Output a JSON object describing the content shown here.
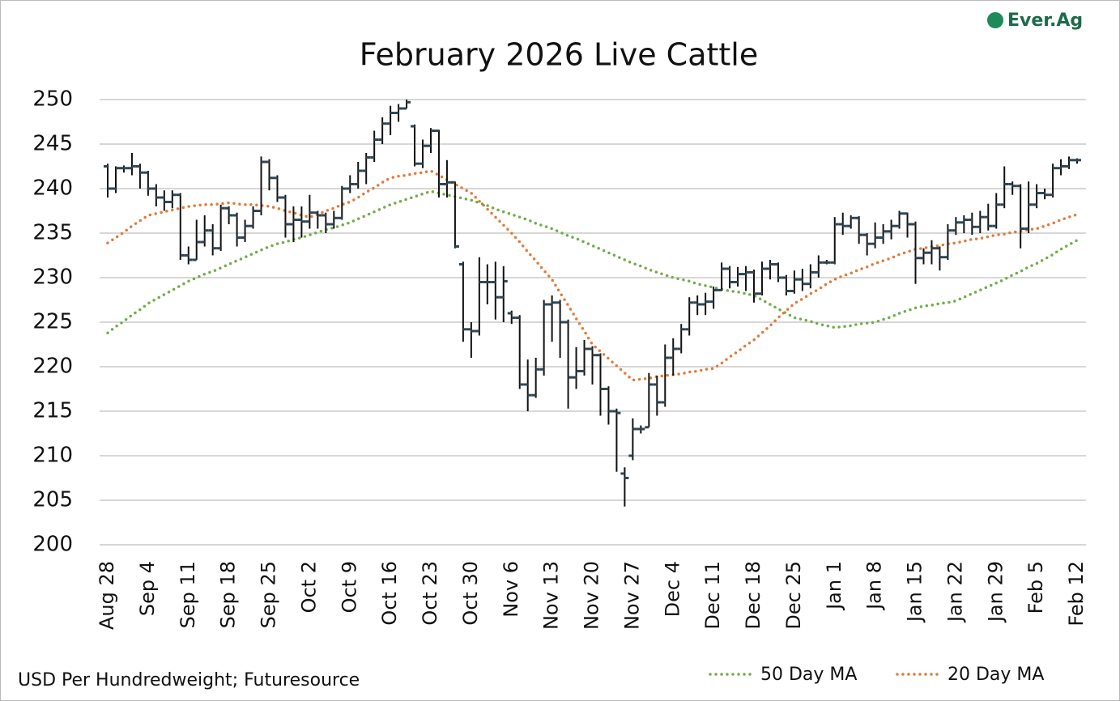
{
  "chart_data": {
    "type": "ohlc",
    "title": "February 2026 Live Cattle",
    "note": "USD Per Hundredweight; Futuresource",
    "logo": "Ever.Ag",
    "categories": [
      "Aug 28",
      null,
      null,
      null,
      null,
      "Sep 4",
      null,
      null,
      null,
      null,
      "Sep 11",
      null,
      null,
      null,
      null,
      "Sep 18",
      null,
      null,
      null,
      null,
      "Sep 25",
      null,
      null,
      null,
      null,
      "Oct 2",
      null,
      null,
      null,
      null,
      "Oct 9",
      null,
      null,
      null,
      null,
      "Oct 16",
      null,
      null,
      null,
      null,
      "Oct 23",
      null,
      null,
      null,
      null,
      "Oct 30",
      null,
      null,
      null,
      null,
      "Nov 6",
      null,
      null,
      null,
      null,
      "Nov 13",
      null,
      null,
      null,
      null,
      "Nov 20",
      null,
      null,
      null,
      null,
      "Nov 27",
      null,
      null,
      null,
      null,
      "Dec 4",
      null,
      null,
      null,
      null,
      "Dec 11",
      null,
      null,
      null,
      null,
      "Dec 18",
      null,
      null,
      null,
      null,
      "Dec 25",
      null,
      null,
      null,
      null,
      "Jan 1",
      null,
      null,
      null,
      null,
      "Jan 8",
      null,
      null,
      null,
      null,
      "Jan 15",
      null,
      null,
      null,
      null,
      "Jan 22",
      null,
      null,
      null,
      null,
      "Jan 29",
      null,
      null,
      null,
      null,
      "Feb 5",
      null,
      null,
      null,
      null,
      "Feb 12"
    ],
    "ohlc": {
      "bar_color": "#111111",
      "tick_color": "#2f4652",
      "open": [
        242.5,
        240,
        242.3,
        242.3,
        242.5,
        241.8,
        240,
        239,
        238.5,
        239.3,
        232.5,
        232,
        234,
        235.3,
        233.3,
        237.8,
        237,
        234.5,
        235.8,
        237.5,
        243,
        241.2,
        239,
        236,
        236.5,
        236.3,
        237.3,
        237,
        236,
        236.7,
        240,
        240.5,
        242,
        243.5,
        245.5,
        247.3,
        248.5,
        249,
        247,
        242.8,
        244.8,
        246.5,
        240.5,
        240.7,
        231.5,
        224.2,
        224,
        229.5,
        229.5,
        227.8,
        226,
        225.5,
        218,
        216.8,
        219.7,
        227,
        227.2,
        225,
        218.8,
        219.5,
        222,
        221.3,
        217.5,
        215,
        208,
        210,
        213,
        213.2,
        218,
        216,
        221,
        222,
        224.2,
        227.2,
        227,
        227.3,
        228.6,
        231,
        229.5,
        230.4,
        230.6,
        228.2,
        231,
        231.5,
        230,
        228.5,
        229.8,
        229.3,
        230.6,
        231.7,
        231.7,
        236,
        235.8,
        236.7,
        234.8,
        233.8,
        234.5,
        235.2,
        235.8,
        237.2,
        236,
        232.2,
        232.8,
        233.3,
        232.3,
        235.3,
        236.2,
        236.5,
        235.7,
        236.8,
        235.8,
        238.2,
        240.5,
        240.3,
        235.5,
        238.2,
        239.5,
        239.3,
        242.3,
        242.5,
        243.2
      ],
      "high": [
        242.8,
        242.5,
        242.6,
        244,
        242.8,
        242,
        240.5,
        239.8,
        239.8,
        239.5,
        233.5,
        236.5,
        237,
        236,
        238.2,
        238,
        237.3,
        236.5,
        238,
        243.6,
        243.3,
        241.5,
        239.3,
        238,
        238,
        239.3,
        237.5,
        237.3,
        237.5,
        240.3,
        241.5,
        243,
        244,
        246.5,
        248,
        249.3,
        249.5,
        250,
        247.2,
        245.5,
        246.8,
        246.6,
        243.2,
        240.8,
        231.8,
        225,
        232.3,
        231.5,
        231.8,
        231.3,
        226.3,
        225.8,
        220.8,
        221,
        227.5,
        228,
        227.5,
        225.3,
        222.2,
        223,
        222.3,
        221.5,
        217.8,
        215.3,
        208.7,
        214.2,
        213.4,
        219.3,
        219,
        222.5,
        223.2,
        224.8,
        227.8,
        228,
        228.3,
        229,
        231.7,
        231.3,
        231.2,
        231.3,
        230.9,
        231.8,
        232,
        231.7,
        230.3,
        230.8,
        231,
        231.5,
        232.5,
        232,
        236.8,
        237.3,
        237,
        236.9,
        235,
        236.2,
        236,
        236.5,
        237.5,
        237.3,
        236.3,
        233.3,
        234.2,
        233.5,
        236,
        236.8,
        237,
        237.3,
        237.5,
        238.3,
        239.5,
        242.5,
        240.8,
        240.5,
        240.8,
        240.5,
        240,
        242.8,
        243.3,
        243.6,
        243.4
      ],
      "low": [
        239,
        239.5,
        241.8,
        241.5,
        240,
        239.2,
        238,
        237.5,
        237.8,
        232,
        231.5,
        232,
        233.5,
        232.5,
        233,
        236,
        233.5,
        234,
        235.5,
        237,
        239.8,
        238.5,
        234.5,
        234,
        234.5,
        235.5,
        235.5,
        235,
        235.5,
        236.5,
        239.5,
        240,
        240.5,
        243,
        245,
        246,
        247.5,
        249,
        242.5,
        242.3,
        244,
        239,
        239,
        233.3,
        222.8,
        221,
        223.5,
        227,
        225.3,
        225,
        224.8,
        217.5,
        215,
        216.5,
        219,
        222.8,
        221,
        215.3,
        217.5,
        219,
        218,
        214.5,
        213.5,
        208.2,
        204.3,
        209.5,
        212.5,
        213.2,
        214.5,
        215.5,
        219,
        221.5,
        223.5,
        225.8,
        225.8,
        226.5,
        228.5,
        228.8,
        229,
        228.5,
        227.2,
        228,
        229.8,
        229.5,
        228,
        228.2,
        228.5,
        228.8,
        230,
        231.5,
        231.5,
        234.8,
        235.5,
        233.8,
        232.5,
        233.3,
        233.8,
        234.3,
        235.5,
        234.5,
        229.3,
        231.5,
        231.5,
        230.8,
        232,
        234.8,
        235,
        234.8,
        235,
        235.3,
        235.5,
        237.8,
        239.3,
        233.3,
        235,
        237.8,
        238.8,
        239,
        241.5,
        242.2,
        242.8
      ],
      "close": [
        240,
        242.3,
        242.3,
        242.5,
        241.8,
        240,
        239,
        238.5,
        239.3,
        232.5,
        232,
        234,
        235.3,
        233.3,
        237.8,
        237,
        234.5,
        235.8,
        237.5,
        243,
        241.2,
        239,
        236,
        236.5,
        236.3,
        237.3,
        237,
        236,
        236.7,
        240,
        240.5,
        242,
        243.5,
        245.5,
        247.3,
        248.5,
        249,
        249.7,
        242.8,
        244.8,
        246.5,
        240.5,
        240.7,
        233.5,
        224.2,
        224,
        229.5,
        229.5,
        227.8,
        229.6,
        225.5,
        218,
        216.8,
        219.7,
        227,
        227.2,
        225,
        218.8,
        219.5,
        222,
        221.3,
        217.5,
        215,
        214.8,
        207.5,
        213,
        213,
        218,
        216,
        221,
        222,
        224.2,
        227.2,
        227,
        227.3,
        228.6,
        231,
        229.5,
        230.4,
        230.6,
        228.2,
        231,
        231.5,
        230,
        228.5,
        229.8,
        229.3,
        230.6,
        231.7,
        231.7,
        236,
        235.8,
        236.7,
        234.8,
        233.8,
        234.5,
        235.2,
        235.8,
        237.2,
        236,
        232.2,
        232.8,
        233.3,
        232.3,
        235.3,
        236.2,
        236.5,
        235.7,
        236.8,
        235.8,
        238.2,
        240.5,
        240.3,
        235.5,
        238.2,
        239.5,
        239.3,
        242.3,
        242.5,
        243.2,
        243.2
      ]
    },
    "series": [
      {
        "name": "50 Day MA",
        "color": "#70ad47",
        "values": [
          223.8,
          224.5,
          225.1,
          225.8,
          226.4,
          227.1,
          227.6,
          228.1,
          228.6,
          229.1,
          229.6,
          230.0,
          230.4,
          230.7,
          231.1,
          231.5,
          231.9,
          232.3,
          232.7,
          233.1,
          233.5,
          233.8,
          234.0,
          234.3,
          234.5,
          234.8,
          235.1,
          235.4,
          235.6,
          235.9,
          236.2,
          236.6,
          237.0,
          237.4,
          237.8,
          238.2,
          238.5,
          238.8,
          239.1,
          239.4,
          239.7,
          239.5,
          239.3,
          239.1,
          238.9,
          238.7,
          238.4,
          238.1,
          237.7,
          237.4,
          237.1,
          236.8,
          236.5,
          236.1,
          235.8,
          235.5,
          235.1,
          234.7,
          234.4,
          234.0,
          233.6,
          233.2,
          232.8,
          232.4,
          232.0,
          231.6,
          231.3,
          230.9,
          230.6,
          230.3,
          230.0,
          229.8,
          229.6,
          229.3,
          229.1,
          228.9,
          228.7,
          228.5,
          228.4,
          228.2,
          228.0,
          227.5,
          227.0,
          226.5,
          226.0,
          225.5,
          225.3,
          225.1,
          224.8,
          224.6,
          224.4,
          224.5,
          224.6,
          224.8,
          224.9,
          225.0,
          225.3,
          225.6,
          226.0,
          226.3,
          226.6,
          226.8,
          226.9,
          227.1,
          227.2,
          227.4,
          227.8,
          228.2,
          228.6,
          229.0,
          229.4,
          229.8,
          230.3,
          230.7,
          231.2,
          231.6,
          232.1,
          232.6,
          233.2,
          233.7,
          234.2
        ]
      },
      {
        "name": "20 Day MA",
        "color": "#e07b39",
        "values": [
          233.9,
          234.5,
          235.1,
          235.8,
          236.4,
          237.0,
          237.2,
          237.4,
          237.6,
          237.8,
          238.0,
          238.1,
          238.2,
          238.2,
          238.3,
          238.4,
          238.3,
          238.2,
          238.2,
          238.1,
          238.0,
          237.8,
          237.5,
          237.3,
          237.0,
          236.8,
          237.1,
          237.5,
          237.8,
          238.2,
          238.5,
          239.0,
          239.6,
          240.1,
          240.7,
          241.2,
          241.4,
          241.5,
          241.7,
          241.8,
          242.0,
          241.5,
          241.0,
          240.5,
          240.0,
          239.5,
          238.6,
          237.7,
          236.8,
          235.9,
          235.0,
          234.0,
          232.9,
          231.9,
          230.8,
          229.8,
          228.3,
          226.9,
          225.4,
          224.0,
          222.5,
          221.7,
          220.9,
          220.1,
          219.3,
          218.5,
          218.6,
          218.7,
          218.9,
          219.0,
          219.1,
          219.2,
          219.4,
          219.5,
          219.7,
          219.8,
          220.4,
          221.1,
          221.7,
          222.4,
          223.0,
          223.8,
          224.6,
          225.5,
          226.3,
          227.1,
          227.6,
          228.2,
          228.7,
          229.3,
          229.8,
          230.2,
          230.5,
          230.9,
          231.2,
          231.6,
          231.9,
          232.2,
          232.6,
          232.9,
          233.2,
          233.3,
          233.5,
          233.6,
          233.8,
          233.9,
          234.1,
          234.3,
          234.4,
          234.6,
          234.8,
          234.9,
          235.1,
          235.2,
          235.4,
          235.5,
          235.8,
          236.1,
          236.5,
          236.8,
          237.1
        ]
      }
    ],
    "ylim": [
      200,
      250
    ],
    "yticks": [
      200,
      205,
      210,
      215,
      220,
      225,
      230,
      235,
      240,
      245,
      250
    ],
    "grid": true
  }
}
